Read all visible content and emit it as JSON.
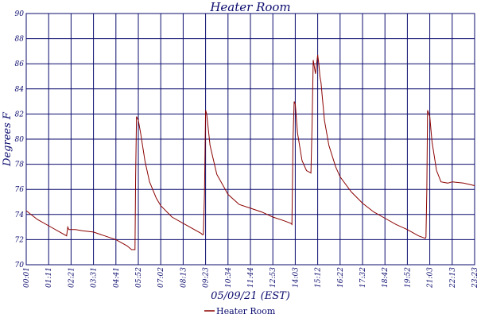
{
  "chart_data": {
    "type": "line",
    "title": "Heater Room",
    "xlabel": "05/09/21 (EST)",
    "ylabel": "Degrees F",
    "ylim": [
      70,
      90
    ],
    "yticks": [
      70,
      72,
      74,
      76,
      78,
      80,
      82,
      84,
      86,
      88,
      90
    ],
    "xtick_labels": [
      "00:01",
      "01:11",
      "02:21",
      "03:31",
      "04:41",
      "05:52",
      "07:02",
      "08:13",
      "09:23",
      "10:34",
      "11:44",
      "12:53",
      "14:03",
      "15:12",
      "16:22",
      "17:32",
      "18:42",
      "19:52",
      "21:03",
      "22:13",
      "23:23"
    ],
    "xlim": [
      0,
      20
    ],
    "grid": true,
    "series": [
      {
        "name": "Heater Room",
        "color": "#8b0000",
        "x": [
          0,
          0.5,
          1.0,
          1.5,
          1.8,
          1.85,
          1.9,
          2.2,
          2.5,
          3.0,
          3.5,
          4.0,
          4.5,
          4.7,
          4.85,
          4.88,
          4.92,
          5.0,
          5.1,
          5.3,
          5.5,
          5.8,
          6.0,
          6.5,
          7.0,
          7.5,
          7.8,
          7.85,
          7.9,
          7.95,
          8.0,
          8.05,
          8.2,
          8.5,
          9.0,
          9.5,
          10.0,
          10.5,
          11.0,
          11.5,
          11.8,
          11.85,
          11.9,
          11.95,
          12.0,
          12.1,
          12.3,
          12.5,
          12.7,
          12.75,
          12.8,
          12.9,
          13.0,
          13.05,
          13.1,
          13.15,
          13.2,
          13.3,
          13.5,
          13.8,
          14.0,
          14.5,
          15.0,
          15.5,
          16.0,
          16.5,
          17.0,
          17.5,
          17.8,
          17.83,
          17.87,
          17.9,
          18.0,
          18.1,
          18.3,
          18.5,
          18.8,
          19.0,
          19.5,
          20.0
        ],
        "values": [
          74.3,
          73.6,
          73.1,
          72.6,
          72.3,
          73.0,
          72.8,
          72.8,
          72.7,
          72.6,
          72.3,
          72.0,
          71.5,
          71.2,
          71.2,
          77.0,
          81.8,
          81.5,
          80.5,
          78.2,
          76.6,
          75.3,
          74.7,
          73.8,
          73.3,
          72.8,
          72.5,
          72.4,
          72.4,
          75.6,
          82.3,
          82.0,
          79.5,
          77.2,
          75.6,
          74.8,
          74.5,
          74.2,
          73.8,
          73.5,
          73.3,
          73.2,
          80.0,
          83.0,
          82.8,
          80.5,
          78.3,
          77.5,
          77.3,
          81.0,
          86.3,
          85.2,
          86.7,
          86.0,
          85.0,
          84.5,
          83.5,
          81.5,
          79.5,
          77.8,
          77.0,
          75.8,
          74.9,
          74.2,
          73.7,
          73.2,
          72.8,
          72.3,
          72.1,
          72.2,
          76.0,
          82.3,
          81.8,
          79.8,
          77.5,
          76.6,
          76.5,
          76.6,
          76.5,
          76.3
        ]
      }
    ],
    "legend": {
      "position": "bottom-center",
      "entries": [
        "Heater Room"
      ]
    }
  }
}
